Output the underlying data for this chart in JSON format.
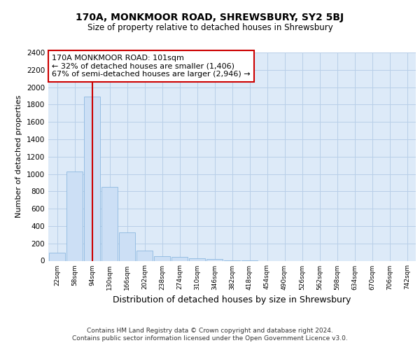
{
  "title1": "170A, MONKMOOR ROAD, SHREWSBURY, SY2 5BJ",
  "title2": "Size of property relative to detached houses in Shrewsbury",
  "xlabel": "Distribution of detached houses by size in Shrewsbury",
  "ylabel": "Number of detached properties",
  "bar_labels": [
    "22sqm",
    "58sqm",
    "94sqm",
    "130sqm",
    "166sqm",
    "202sqm",
    "238sqm",
    "274sqm",
    "310sqm",
    "346sqm",
    "382sqm",
    "418sqm",
    "454sqm",
    "490sqm",
    "526sqm",
    "562sqm",
    "598sqm",
    "634sqm",
    "670sqm",
    "706sqm",
    "742sqm"
  ],
  "bar_heights": [
    90,
    1030,
    1890,
    855,
    325,
    120,
    55,
    45,
    30,
    18,
    5,
    5,
    0,
    0,
    0,
    0,
    0,
    0,
    0,
    0,
    0
  ],
  "bar_color": "#ccdff5",
  "bar_edgecolor": "#8db8e0",
  "grid_color": "#b8cfe8",
  "background_color": "#ddeaf8",
  "vline_color": "#cc0000",
  "annotation_text": "170A MONKMOOR ROAD: 101sqm\n← 32% of detached houses are smaller (1,406)\n67% of semi-detached houses are larger (2,946) →",
  "annotation_box_color": "#ffffff",
  "annotation_border_color": "#cc0000",
  "ylim": [
    0,
    2400
  ],
  "yticks": [
    0,
    200,
    400,
    600,
    800,
    1000,
    1200,
    1400,
    1600,
    1800,
    2000,
    2200,
    2400
  ],
  "footer1": "Contains HM Land Registry data © Crown copyright and database right 2024.",
  "footer2": "Contains public sector information licensed under the Open Government Licence v3.0."
}
